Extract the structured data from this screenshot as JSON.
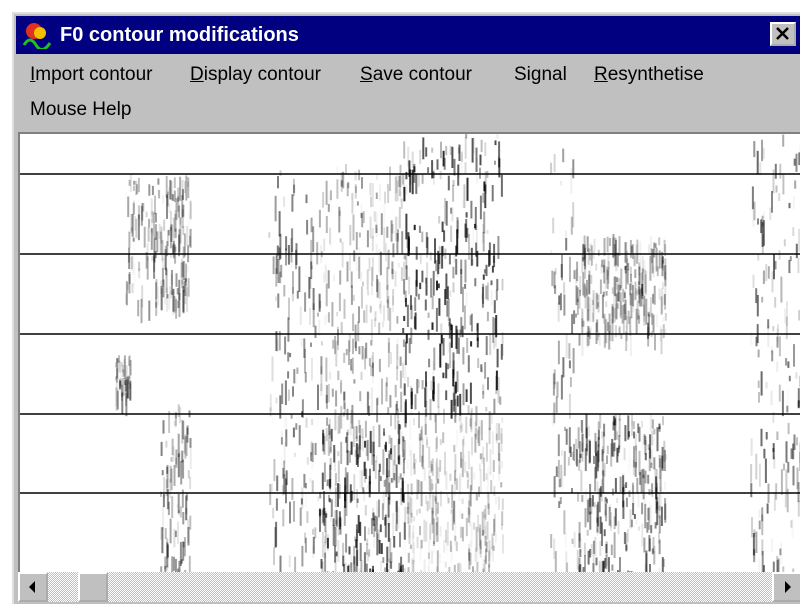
{
  "window": {
    "title": "F0 contour modifications",
    "menu": [
      "Import contour",
      "Display contour",
      "Save contour",
      "Signal",
      "Resynthetise",
      "Mouse Help"
    ]
  }
}
